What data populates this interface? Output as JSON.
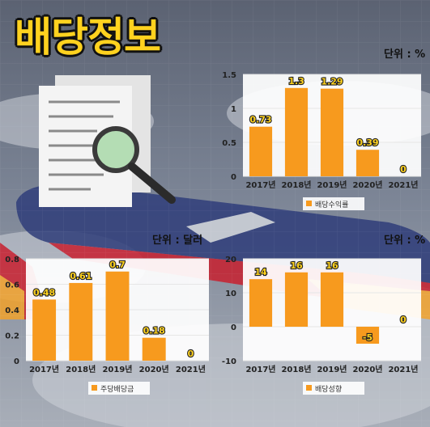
{
  "title": "배당정보",
  "colors": {
    "bar": "#f79a1e",
    "label": "#ffd21f",
    "axis_text": "#222222",
    "grid": "#e6e6e6"
  },
  "chart_data": [
    {
      "type": "bar",
      "unit_label": "단위 : %",
      "categories": [
        "2017년",
        "2018년",
        "2019년",
        "2020년",
        "2021년"
      ],
      "values": [
        0.73,
        1.3,
        1.29,
        0.39,
        0
      ],
      "value_labels": [
        "0.73",
        "1.3",
        "1.29",
        "0.39",
        "0"
      ],
      "ylim": [
        0,
        1.5
      ],
      "yticks": [
        0,
        0.5,
        1,
        1.5
      ],
      "ytick_labels": [
        "0",
        "0.5",
        "1",
        "1.5"
      ],
      "legend": "배당수익률",
      "grid": true
    },
    {
      "type": "bar",
      "unit_label": "단위 : 달러",
      "categories": [
        "2017년",
        "2018년",
        "2019년",
        "2020년",
        "2021년"
      ],
      "values": [
        0.48,
        0.61,
        0.7,
        0.18,
        0
      ],
      "value_labels": [
        "0.48",
        "0.61",
        "0.7",
        "0.18",
        "0"
      ],
      "ylim": [
        0,
        0.8
      ],
      "yticks": [
        0,
        0.2,
        0.4,
        0.6,
        0.8
      ],
      "ytick_labels": [
        "0",
        "0.2",
        "0.4",
        "0.6",
        "0.8"
      ],
      "legend": "주당배당금",
      "grid": true
    },
    {
      "type": "bar",
      "unit_label": "단위 : %",
      "categories": [
        "2017년",
        "2018년",
        "2019년",
        "2020년",
        "2021년"
      ],
      "values": [
        14,
        16,
        16,
        -5,
        0
      ],
      "value_labels": [
        "14",
        "16",
        "16",
        "-5",
        "0"
      ],
      "ylim": [
        -10,
        20
      ],
      "yticks": [
        -10,
        0,
        10,
        20
      ],
      "ytick_labels": [
        "-10",
        "0",
        "10",
        "20"
      ],
      "legend": "배당성향",
      "grid": true
    }
  ]
}
